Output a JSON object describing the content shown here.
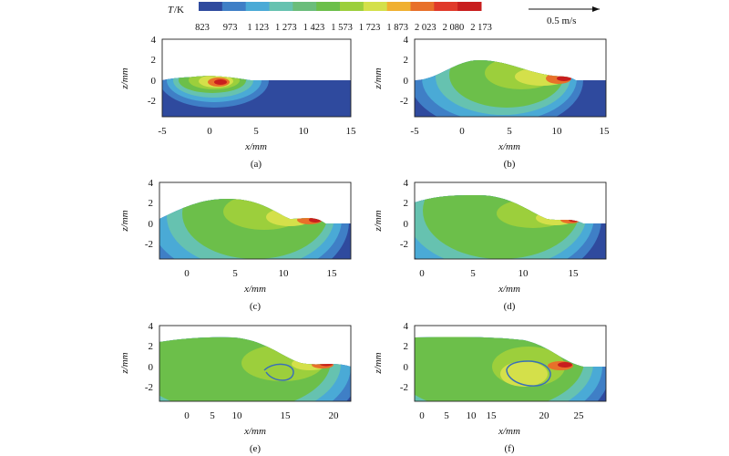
{
  "colorbar": {
    "title": "T",
    "unit": "/K",
    "labels": [
      "823",
      "973",
      "1 123",
      "1 273",
      "1 423",
      "1 573",
      "1 723",
      "1 873",
      "2 023",
      "2 080",
      "2 173"
    ],
    "colors": [
      "#2f4a9e",
      "#3f7fc6",
      "#4aaad6",
      "#66c2b0",
      "#6bbd7b",
      "#6cbf4a",
      "#9ccf3c",
      "#d4e04a",
      "#f0b030",
      "#e8702a",
      "#e03a2a",
      "#c81e1e"
    ]
  },
  "reference_arrow": {
    "label": "0.5 m/s"
  },
  "axes_labels": {
    "x": "x/mm",
    "z": "z/mm"
  },
  "panels": [
    {
      "id": "a",
      "caption": "(a)",
      "xticks": [
        "-5",
        "0",
        "5",
        "10",
        "15"
      ],
      "zticks": [
        "4",
        "2",
        "0",
        "-2"
      ]
    },
    {
      "id": "b",
      "caption": "(b)",
      "xticks": [
        "-5",
        "0",
        "5",
        "10",
        "15"
      ],
      "zticks": [
        "4",
        "2",
        "0",
        "-2"
      ]
    },
    {
      "id": "c",
      "caption": "(c)",
      "xticks": [
        "0",
        "5",
        "10",
        "15"
      ],
      "zticks": [
        "4",
        "2",
        "0",
        "-2"
      ]
    },
    {
      "id": "d",
      "caption": "(d)",
      "xticks": [
        "0",
        "5",
        "10",
        "15"
      ],
      "zticks": [
        "4",
        "2",
        "0",
        "-2"
      ]
    },
    {
      "id": "e",
      "caption": "(e)",
      "xticks": [
        "0",
        "5",
        "10",
        "15",
        "20"
      ],
      "zticks": [
        "4",
        "2",
        "0",
        "-2"
      ]
    },
    {
      "id": "f",
      "caption": "(f)",
      "xticks": [
        "0",
        "5",
        "10",
        "15",
        "20",
        "25"
      ],
      "zticks": [
        "4",
        "2",
        "0",
        "-2"
      ]
    }
  ]
}
